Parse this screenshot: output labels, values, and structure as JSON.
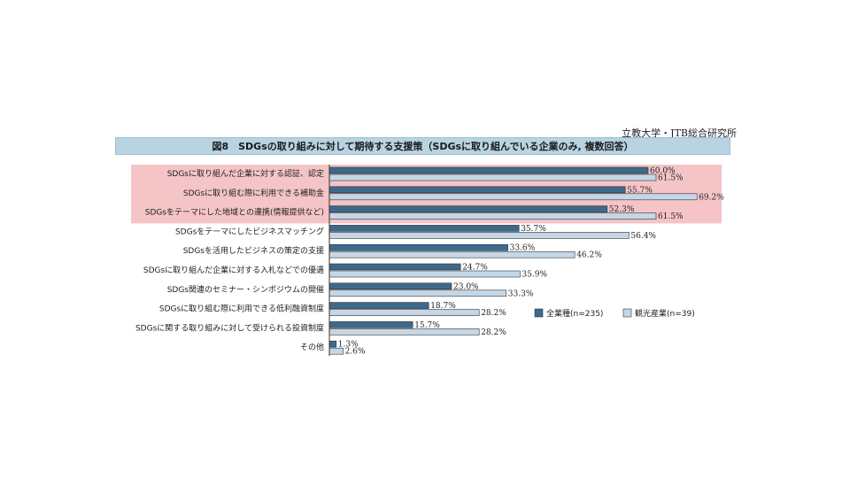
{
  "source": "立教大学・JTB総合研究所",
  "title": "図8　SDGsの取り組みに対して期待する支援策（SDGsに取り組んでいる企業のみ, 複数回答）",
  "colors": {
    "series1": "#3d6a8c",
    "series2": "#c5d7e6",
    "highlight": "#f4c4c6"
  },
  "chart_data": {
    "type": "bar",
    "orientation": "horizontal",
    "title": "図8　SDGsの取り組みに対して期待する支援策（SDGsに取り組んでいる企業のみ, 複数回答）",
    "unit": "%",
    "xlim": [
      0,
      100
    ],
    "grid": false,
    "legend": "right",
    "highlighted_categories": [
      0,
      1,
      2
    ],
    "categories": [
      "SDGsに取り組んだ企業に対する認証、認定",
      "SDGsに取り組む際に利用できる補助金",
      "SDGsをテーマにした地域との連携(情報提供など)",
      "SDGsをテーマにしたビジネスマッチング",
      "SDGsを活用したビジネスの策定の支援",
      "SDGsに取り組んだ企業に対する入札などでの優遇",
      "SDGs関連のセミナー・シンポジウムの開催",
      "SDGsに取り組む際に利用できる低利融資制度",
      "SDGsに関する取り組みに対して受けられる投資制度",
      "その他"
    ],
    "series": [
      {
        "name": "全業種(n=235)",
        "values": [
          60.0,
          55.7,
          52.3,
          35.7,
          33.6,
          24.7,
          23.0,
          18.7,
          15.7,
          1.3
        ]
      },
      {
        "name": "観光産業(n=39)",
        "values": [
          61.5,
          69.2,
          61.5,
          56.4,
          46.2,
          35.9,
          33.3,
          28.2,
          28.2,
          2.6
        ]
      }
    ]
  }
}
